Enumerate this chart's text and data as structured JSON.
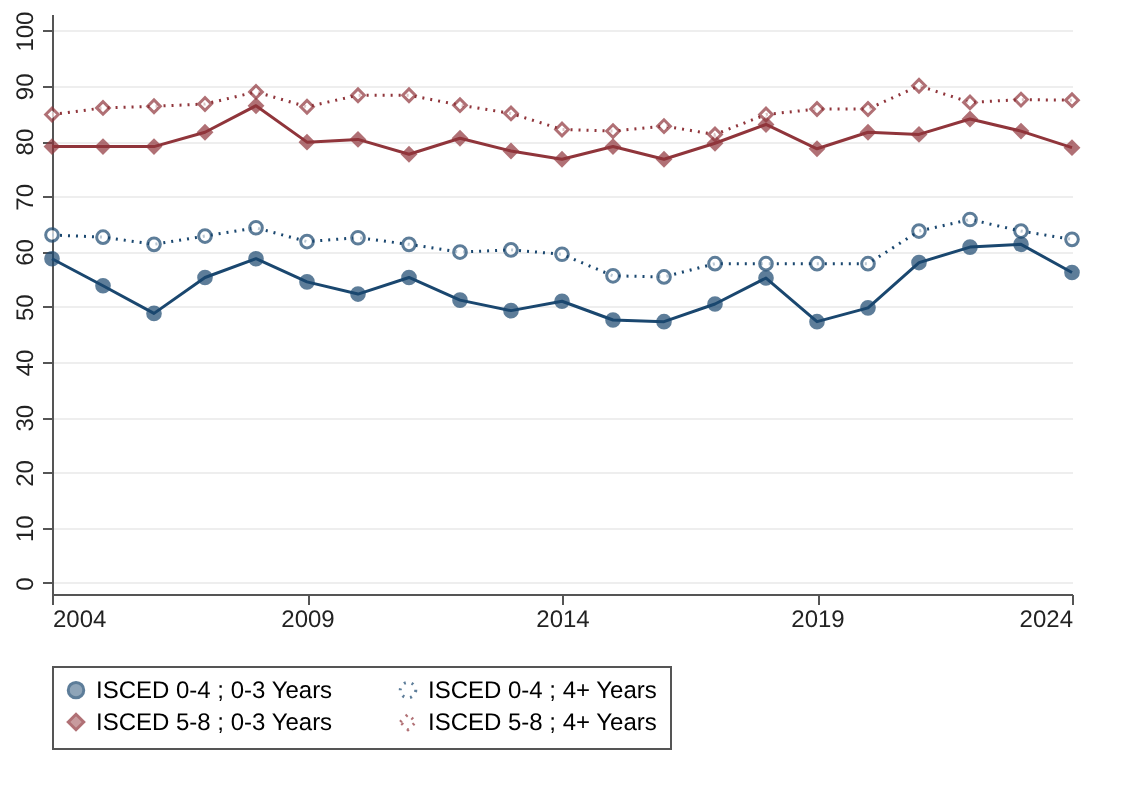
{
  "chart_data": {
    "type": "line",
    "x": [
      2004,
      2005,
      2006,
      2007,
      2008,
      2009,
      2010,
      2011,
      2012,
      2013,
      2014,
      2015,
      2016,
      2017,
      2018,
      2019,
      2020,
      2021,
      2022,
      2023,
      2024
    ],
    "xlim": [
      2004,
      2024
    ],
    "xticks": [
      2004,
      2009,
      2014,
      2019,
      2024
    ],
    "ylim": [
      -2,
      103
    ],
    "yticks": [
      0,
      10,
      20,
      30,
      40,
      50,
      60,
      70,
      80,
      90,
      100
    ],
    "grid": "y",
    "legend": "bottom",
    "series": [
      {
        "name": "ISCED 0-4 ; 0-3 Years",
        "color": "#1a476f",
        "marker": "circle",
        "line_style": "solid",
        "values": [
          58.7,
          53.8,
          48.8,
          55.3,
          58.7,
          54.5,
          52.3,
          55.3,
          51.2,
          49.3,
          51.0,
          47.6,
          47.3,
          50.5,
          55.2,
          47.3,
          49.8,
          58.0,
          60.8,
          61.3,
          56.2
        ]
      },
      {
        "name": "ISCED 0-4 ; 4+ Years",
        "color": "#1a476f",
        "marker": "circle",
        "line_style": "dotted",
        "values": [
          63.0,
          62.6,
          61.3,
          62.8,
          64.3,
          61.8,
          62.5,
          61.3,
          59.9,
          60.3,
          59.5,
          55.6,
          55.4,
          57.8,
          57.8,
          57.8,
          57.8,
          63.7,
          65.8,
          63.7,
          62.2
        ]
      },
      {
        "name": "ISCED 5-8 ; 0-3 Years",
        "color": "#90353b",
        "marker": "diamond",
        "line_style": "solid",
        "values": [
          79.0,
          79.0,
          79.0,
          81.6,
          86.4,
          79.8,
          80.3,
          77.6,
          80.5,
          78.2,
          76.7,
          79.0,
          76.7,
          79.6,
          83.0,
          78.6,
          81.6,
          81.2,
          84.0,
          81.8,
          78.8
        ]
      },
      {
        "name": "ISCED 5-8 ; 4+ Years",
        "color": "#90353b",
        "marker": "diamond",
        "line_style": "dotted",
        "values": [
          84.8,
          86.0,
          86.3,
          86.7,
          88.9,
          86.2,
          88.3,
          88.3,
          86.5,
          85.0,
          82.1,
          81.8,
          82.7,
          81.2,
          84.8,
          85.8,
          85.8,
          90.0,
          87.0,
          87.5,
          87.4
        ]
      }
    ]
  }
}
